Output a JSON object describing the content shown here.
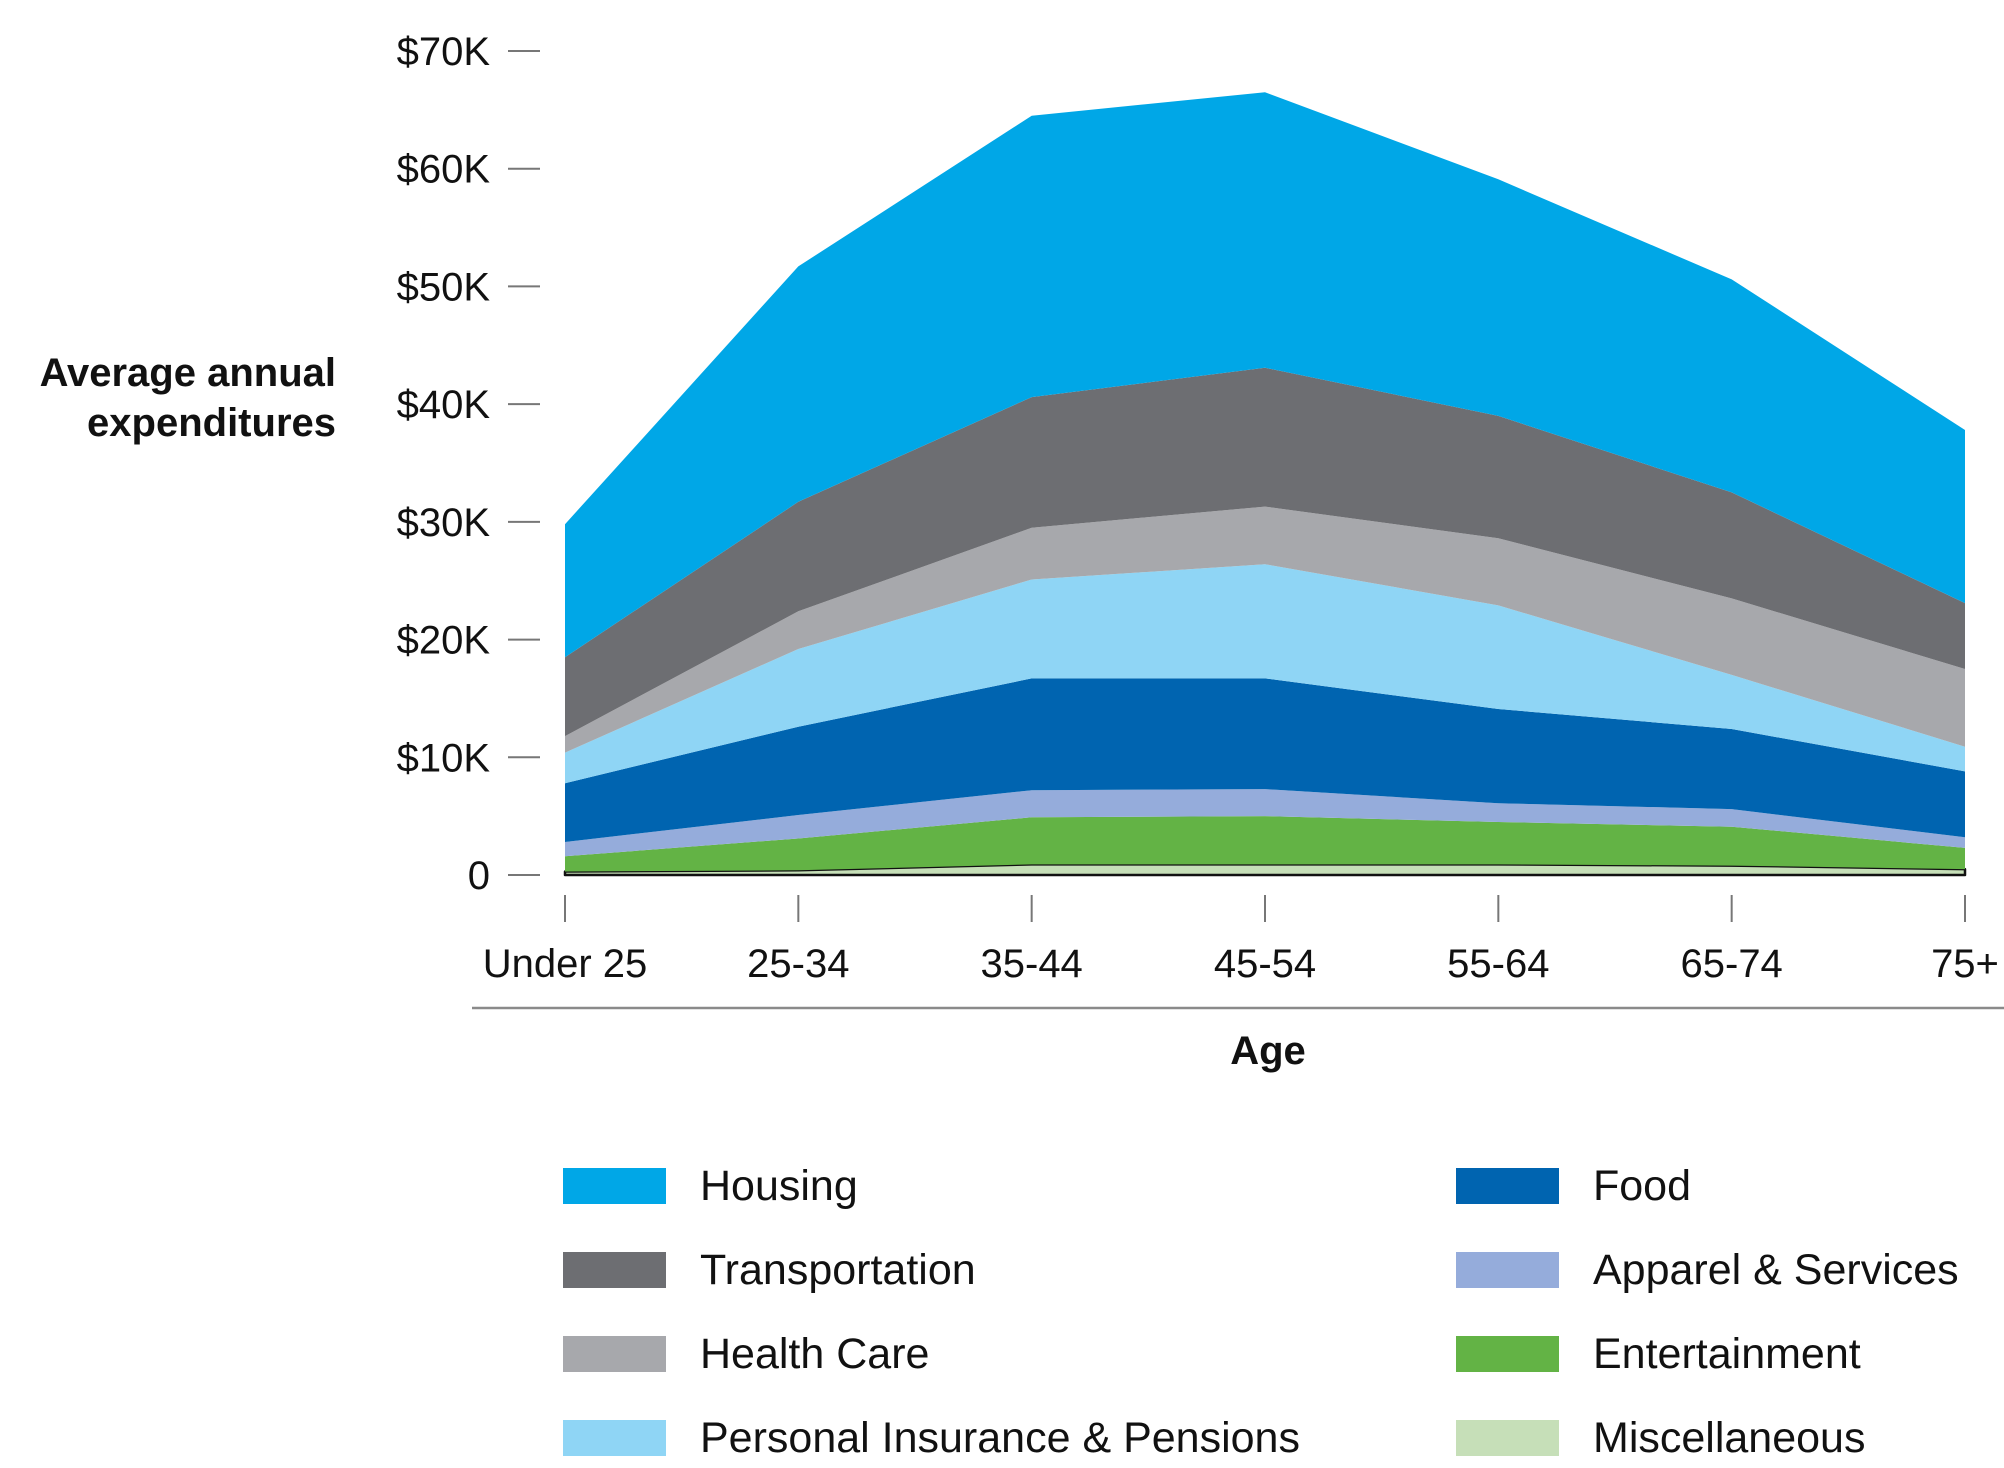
{
  "chart_data": {
    "type": "area",
    "stacked": true,
    "title": "",
    "xlabel": "Age",
    "ylabel": "Average annual expenditures",
    "ylabel_lines": [
      "Average annual",
      "expenditures"
    ],
    "categories": [
      "Under 25",
      "25-34",
      "35-44",
      "45-54",
      "55-64",
      "65-74",
      "75+"
    ],
    "ylim": [
      0,
      70000
    ],
    "yticks": [
      0,
      10000,
      20000,
      30000,
      40000,
      50000,
      60000,
      70000
    ],
    "ytick_labels": [
      "0",
      "$10K",
      "$20K",
      "$30K",
      "$40K",
      "$50K",
      "$60K",
      "$70K"
    ],
    "grid": false,
    "legend_position": "bottom",
    "series_stack_order_bottom_to_top": [
      "Miscellaneous",
      "Entertainment",
      "Apparel & Services",
      "Food",
      "Personal Insurance & Pensions",
      "Health Care",
      "Transportation",
      "Housing"
    ],
    "series": [
      {
        "name": "Housing",
        "color": "#00a7e7",
        "values": [
          11300,
          20000,
          23900,
          23400,
          20100,
          18100,
          14700
        ]
      },
      {
        "name": "Transportation",
        "color": "#6d6e72",
        "values": [
          6700,
          9300,
          11100,
          11800,
          10400,
          9000,
          5600
        ]
      },
      {
        "name": "Health Care",
        "color": "#a7a8ac",
        "values": [
          1400,
          3200,
          4400,
          4900,
          5700,
          6500,
          6600
        ]
      },
      {
        "name": "Personal Insurance & Pensions",
        "color": "#8fd5f5",
        "values": [
          2600,
          6600,
          8400,
          9700,
          8800,
          4600,
          2100
        ]
      },
      {
        "name": "Food",
        "color": "#0064b0",
        "values": [
          5000,
          7500,
          9500,
          9400,
          8000,
          6800,
          5600
        ]
      },
      {
        "name": "Apparel & Services",
        "color": "#95acdb",
        "values": [
          1200,
          2000,
          2300,
          2300,
          1600,
          1500,
          900
        ]
      },
      {
        "name": "Entertainment",
        "color": "#63b345",
        "values": [
          1300,
          2700,
          4000,
          4100,
          3600,
          3300,
          1800
        ]
      },
      {
        "name": "Miscellaneous",
        "color": "#c6dfb8",
        "values": [
          300,
          400,
          900,
          900,
          900,
          800,
          500
        ]
      }
    ]
  },
  "legend": {
    "left": [
      "Housing",
      "Transportation",
      "Health Care",
      "Personal Insurance & Pensions"
    ],
    "right": [
      "Food",
      "Apparel & Services",
      "Entertainment",
      "Miscellaneous"
    ]
  }
}
